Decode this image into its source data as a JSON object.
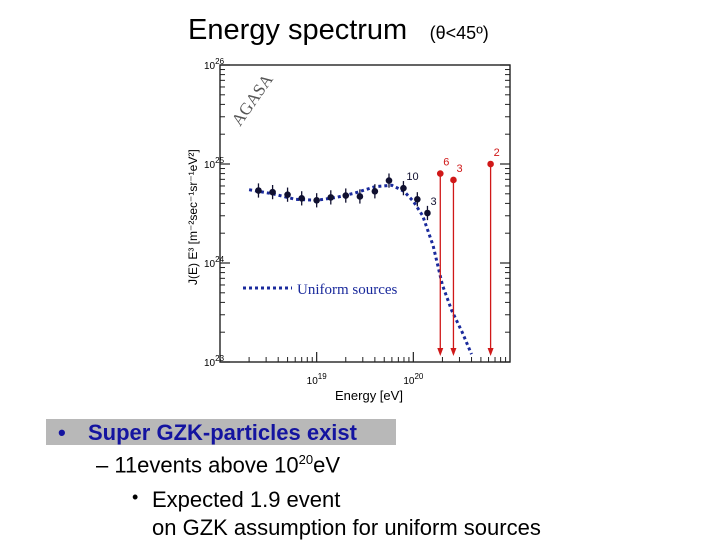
{
  "title": {
    "main": "Energy spectrum",
    "sub": "(θ<45º)"
  },
  "bullets": {
    "b1": "Super GZK-particles exist",
    "b2_prefix": "– 11events above 10",
    "b2_exp": "20",
    "b2_suffix": "eV",
    "b3": "Expected 1.9 event",
    "b4": "on GZK assumption for uniform sources"
  },
  "chart_data": {
    "type": "scatter",
    "xlabel": "Energy [eV]",
    "ylabel": "J(E) E³ [m⁻²sec⁻¹sr⁻¹eV²]",
    "x_scale": "log",
    "y_scale": "log",
    "xlim": [
      1e+18,
      1e+21
    ],
    "ylim": [
      1e+23,
      1e+26
    ],
    "x_ticks": [
      {
        "label_base": "10",
        "label_exp": "19",
        "value": 1e+19
      },
      {
        "label_base": "10",
        "label_exp": "20",
        "value": 1e+20
      }
    ],
    "y_ticks": [
      {
        "label_base": "10",
        "label_exp": "23",
        "value": 1e+23
      },
      {
        "label_base": "10",
        "label_exp": "24",
        "value": 1e+24
      },
      {
        "label_base": "10",
        "label_exp": "25",
        "value": 1e+25
      },
      {
        "label_base": "10",
        "label_exp": "26",
        "value": 1e+26
      }
    ],
    "watermark": "AGASA",
    "legend": {
      "label": "Uniform sources",
      "placement": "lower-left"
    },
    "series": [
      {
        "color": "#101030",
        "points": [
          {
            "x": 2.5e+18,
            "y": 5.4e+24
          },
          {
            "x": 3.5e+18,
            "y": 5.2e+24
          },
          {
            "x": 5e+18,
            "y": 4.9e+24
          },
          {
            "x": 7e+18,
            "y": 4.5e+24
          },
          {
            "x": 1e+19,
            "y": 4.3e+24
          },
          {
            "x": 1.4e+19,
            "y": 4.6e+24
          },
          {
            "x": 2e+19,
            "y": 4.8e+24
          },
          {
            "x": 2.8e+19,
            "y": 4.7e+24
          },
          {
            "x": 4e+19,
            "y": 5.3e+24
          },
          {
            "x": 5.6e+19,
            "y": 6.8e+24
          },
          {
            "x": 7.9e+19,
            "y": 5.7e+24,
            "label": "10"
          },
          {
            "x": 1.1e+20,
            "y": 4.4e+24
          },
          {
            "x": 1.4e+20,
            "y": 3.2e+24,
            "label": "3"
          }
        ]
      },
      {
        "color": "#d01818",
        "points": [
          {
            "x": 1.9e+20,
            "y": 8e+24,
            "label": "6"
          },
          {
            "x": 2.6e+20,
            "y": 6.9e+24,
            "label": "3"
          },
          {
            "x": 6.3e+20,
            "y": 1e+25,
            "label": "2"
          }
        ]
      },
      {
        "name": "Uniform sources",
        "style": "dotted",
        "color": "#1a2a9c",
        "points": [
          {
            "x": 2e+18,
            "y": 5.5e+24
          },
          {
            "x": 3.5e+18,
            "y": 5e+24
          },
          {
            "x": 6e+18,
            "y": 4.4e+24
          },
          {
            "x": 1e+19,
            "y": 4.3e+24
          },
          {
            "x": 1.6e+19,
            "y": 4.6e+24
          },
          {
            "x": 2.5e+19,
            "y": 5.1e+24
          },
          {
            "x": 4e+19,
            "y": 5.9e+24
          },
          {
            "x": 6e+19,
            "y": 6.1e+24
          },
          {
            "x": 8e+19,
            "y": 5.3e+24
          },
          {
            "x": 1e+20,
            "y": 4.2e+24
          },
          {
            "x": 1.25e+20,
            "y": 3e+24
          },
          {
            "x": 1.6e+20,
            "y": 1.5e+24
          },
          {
            "x": 2e+20,
            "y": 6e+23
          },
          {
            "x": 2.5e+20,
            "y": 3.3e+23
          },
          {
            "x": 3.2e+20,
            "y": 2e+23
          },
          {
            "x": 4e+20,
            "y": 1.2e+23
          }
        ]
      }
    ]
  }
}
